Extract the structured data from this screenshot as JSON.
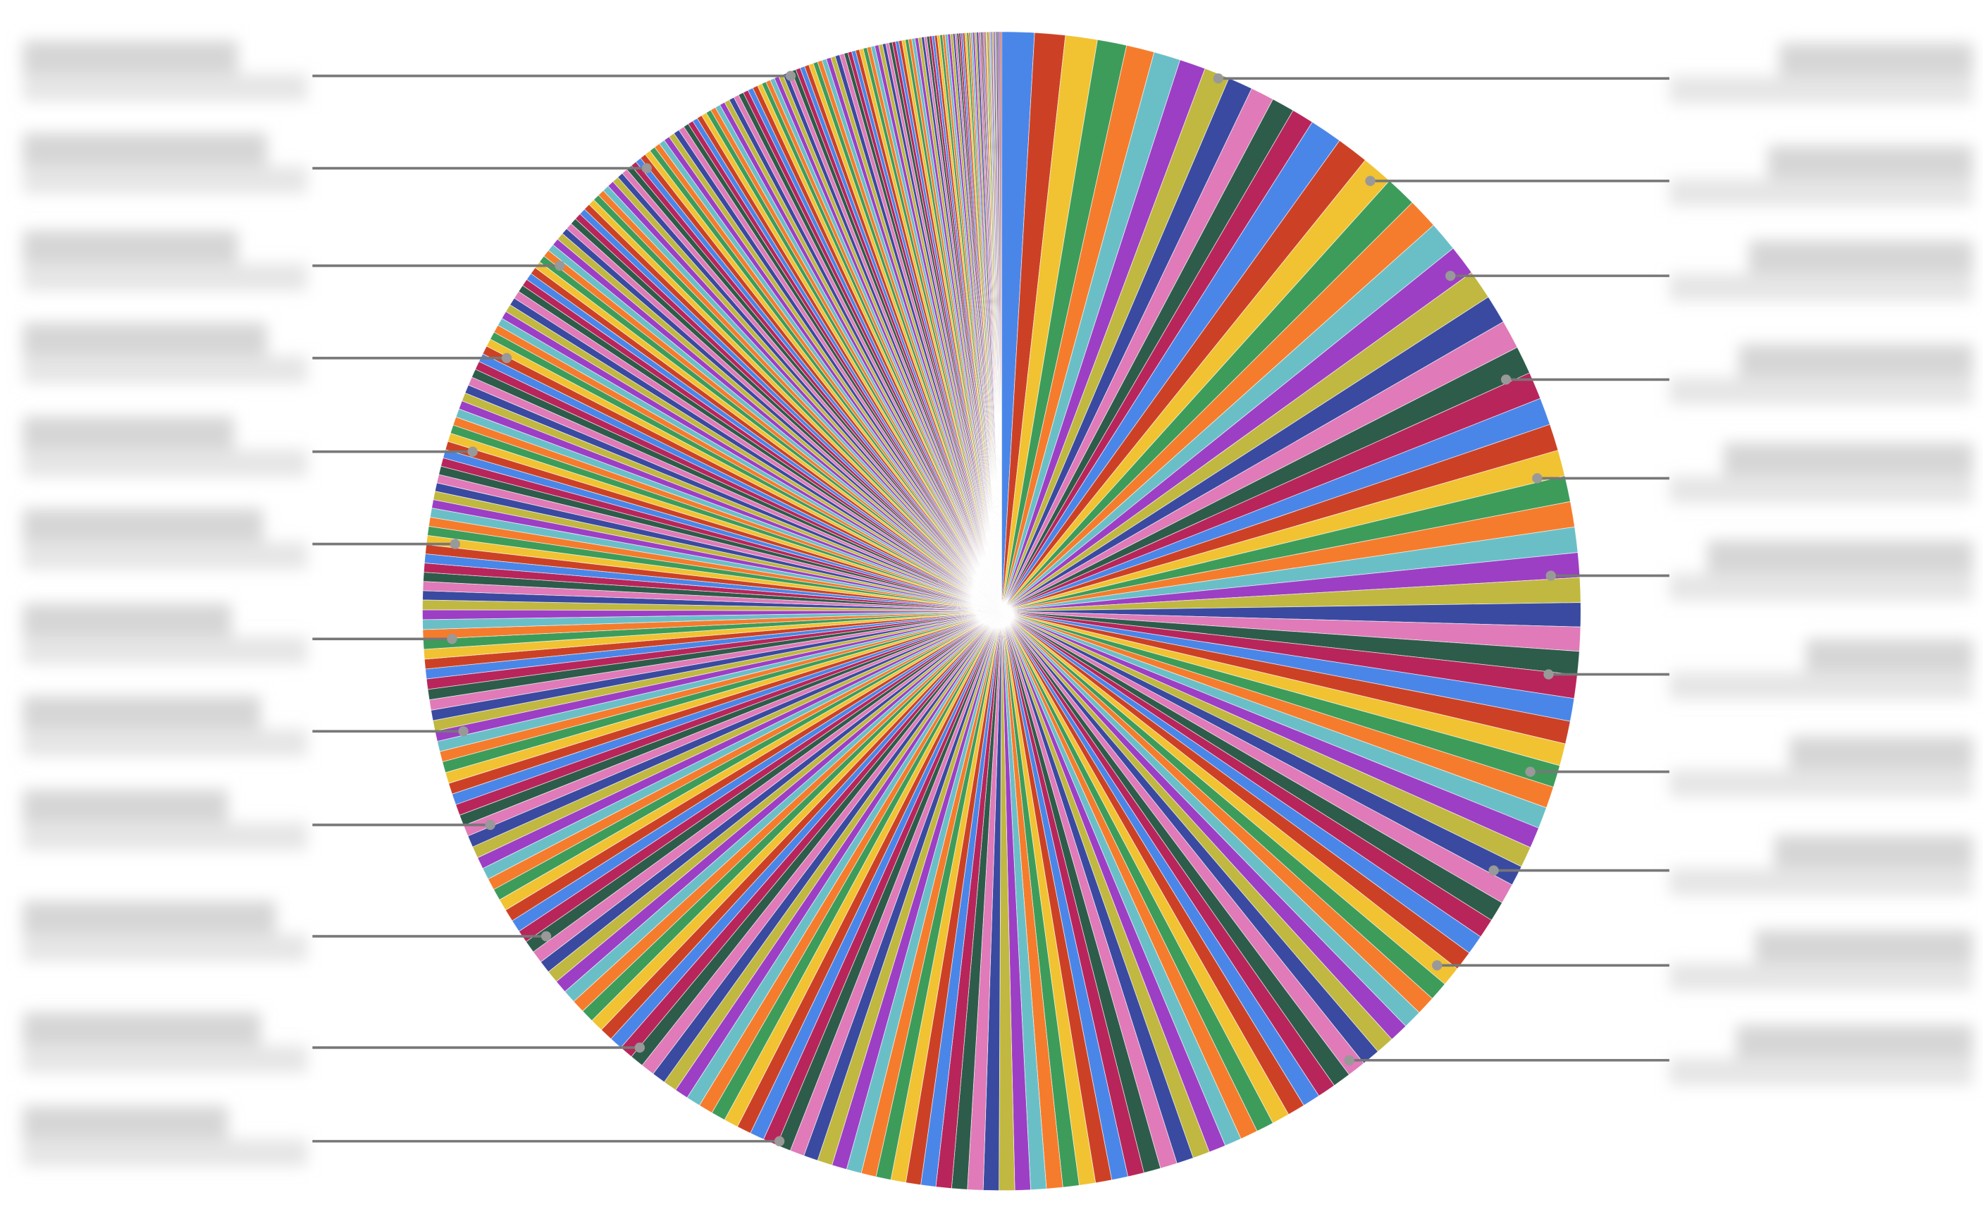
{
  "chart_data": {
    "type": "pie",
    "colors": [
      "#4a86e8",
      "#cc4125",
      "#f1c232",
      "#3d9c5a",
      "#f57c2c",
      "#6abfc7",
      "#9c3fc4",
      "#c0b840",
      "#3a4aa0",
      "#e07ab8",
      "#2e5c4a",
      "#b8255a"
    ],
    "values": [
      0.5,
      0.47,
      0.49,
      0.45,
      0.43,
      0.41,
      0.4,
      0.39,
      0.38,
      0.36,
      0.35,
      0.34,
      0.5,
      0.49,
      0.48,
      0.48,
      0.47,
      0.46,
      0.46,
      0.45,
      0.44,
      0.44,
      0.43,
      0.42,
      0.42,
      0.41,
      0.4,
      0.4,
      0.39,
      0.39,
      0.38,
      0.38,
      0.37,
      0.37,
      0.36,
      0.36,
      0.35,
      0.35,
      0.34,
      0.34,
      0.33,
      0.33,
      0.32,
      0.32,
      0.31,
      0.31,
      0.31,
      0.3,
      0.3,
      0.3,
      0.3,
      0.29,
      0.29,
      0.29,
      0.29,
      0.28,
      0.28,
      0.28,
      0.28,
      0.28,
      0.27,
      0.27,
      0.27,
      0.27,
      0.27,
      0.26,
      0.26,
      0.26,
      0.26,
      0.26,
      0.26,
      0.25,
      0.25,
      0.25,
      0.25,
      0.25,
      0.25,
      0.24,
      0.24,
      0.24,
      0.24,
      0.24,
      0.24,
      0.24,
      0.23,
      0.23,
      0.23,
      0.23,
      0.23,
      0.23,
      0.23,
      0.23,
      0.22,
      0.22,
      0.22,
      0.22,
      0.22,
      0.22,
      0.22,
      0.22,
      0.22,
      0.22,
      0.21,
      0.21,
      0.21,
      0.21,
      0.21,
      0.21,
      0.2,
      0.2,
      0.2,
      0.2,
      0.2,
      0.2,
      0.2,
      0.19,
      0.19,
      0.19,
      0.19,
      0.19,
      0.19,
      0.19,
      0.18,
      0.18,
      0.18,
      0.18,
      0.18,
      0.18,
      0.18,
      0.17,
      0.17,
      0.17,
      0.17,
      0.17,
      0.17,
      0.17,
      0.16,
      0.16,
      0.16,
      0.16,
      0.16,
      0.16,
      0.16,
      0.16,
      0.15,
      0.15,
      0.15,
      0.15,
      0.15,
      0.15,
      0.15,
      0.15,
      0.14,
      0.14,
      0.14,
      0.14,
      0.14,
      0.14,
      0.14,
      0.14,
      0.14,
      0.14,
      0.13,
      0.13,
      0.13,
      0.13,
      0.13,
      0.13,
      0.13,
      0.13,
      0.13,
      0.13,
      0.13,
      0.13,
      0.13,
      0.13,
      0.13,
      0.13,
      0.13,
      0.13,
      0.13,
      0.13,
      0.12,
      0.12,
      0.12,
      0.12,
      0.12,
      0.12,
      0.12,
      0.12,
      0.11,
      0.11,
      0.11,
      0.11,
      0.11,
      0.11,
      0.11,
      0.11,
      0.11,
      0.11,
      0.1,
      0.1,
      0.1,
      0.1,
      0.1,
      0.1,
      0.1,
      0.1,
      0.1,
      0.1,
      0.1,
      0.1,
      0.09,
      0.09,
      0.09,
      0.09,
      0.09,
      0.09,
      0.09,
      0.09,
      0.09,
      0.09,
      0.09,
      0.09,
      0.09,
      0.09,
      0.08,
      0.08,
      0.08,
      0.08,
      0.08,
      0.08,
      0.08,
      0.08,
      0.08,
      0.08,
      0.08,
      0.08,
      0.08,
      0.08,
      0.08,
      0.08,
      0.07,
      0.07,
      0.07,
      0.07,
      0.07,
      0.07,
      0.07,
      0.07,
      0.07,
      0.07,
      0.07,
      0.07,
      0.07,
      0.07,
      0.07,
      0.07,
      0.07,
      0.07,
      0.07,
      0.07,
      0.06,
      0.06,
      0.06,
      0.06,
      0.06,
      0.06,
      0.06,
      0.06,
      0.06,
      0.06,
      0.05,
      0.05,
      0.05,
      0.05,
      0.05,
      0.05,
      0.05,
      0.05,
      0.05,
      0.05,
      0.05,
      0.05,
      0.04,
      0.04,
      0.04,
      0.04,
      0.04,
      0.04,
      0.04,
      0.04,
      0.04,
      0.04,
      0.04,
      0.04,
      0.03,
      0.03,
      0.03,
      0.03,
      0.03,
      0.03,
      0.03,
      0.03,
      0.03,
      0.03,
      0.03,
      0.03,
      0.03,
      0.03,
      0.02,
      0.02,
      0.02,
      0.02,
      0.02,
      0.02,
      0.02,
      0.02,
      0.02,
      0.02,
      0.02,
      0.02,
      0.02,
      0.02,
      0.02,
      0.02
    ]
  }
}
